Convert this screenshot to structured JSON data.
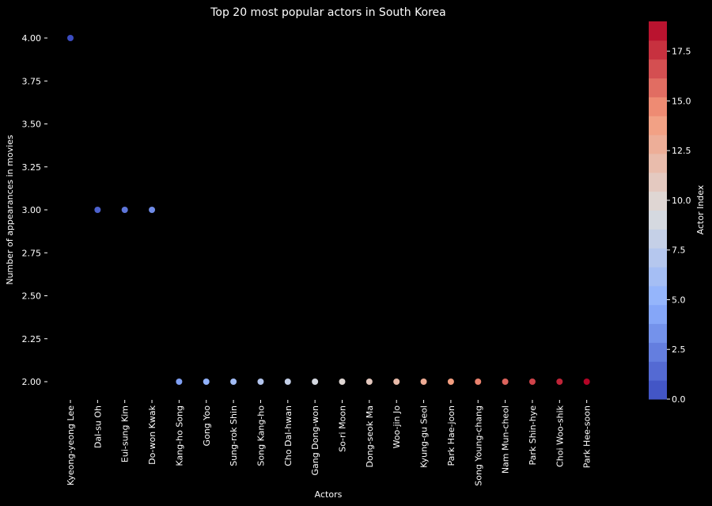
{
  "chart_data": {
    "type": "scatter",
    "title": "Top 20 most popular actors in South Korea",
    "xlabel": "Actors",
    "ylabel": "Number of appearances in movies",
    "categories": [
      "Kyeong-yeong Lee",
      "Dal-su Oh",
      "Eui-sung Kim",
      "Do-won Kwak",
      "Kang-ho Song",
      "Gong Yoo",
      "Sung-rok Shin",
      "Song Kang-ho",
      "Cho Dal-hwan",
      "Gang Dong-won",
      "So-ri Moon",
      "Dong-seok Ma",
      "Woo-jin Jo",
      "Kyung-gu Seol",
      "Park Hae-joon",
      "Song Young-chang",
      "Nam Mun-cheol",
      "Park Shin-hye",
      "Choi Woo-shik",
      "Park Hee-soon"
    ],
    "values": [
      4,
      3,
      3,
      3,
      2,
      2,
      2,
      2,
      2,
      2,
      2,
      2,
      2,
      2,
      2,
      2,
      2,
      2,
      2,
      2
    ],
    "ylim": [
      1.9,
      4.1
    ],
    "yticks": [
      "2.00",
      "2.25",
      "2.50",
      "2.75",
      "3.00",
      "3.25",
      "3.50",
      "3.75",
      "4.00"
    ],
    "colorbar": {
      "label": "Actor Index",
      "range": [
        0,
        19
      ],
      "ticks": [
        "0.0",
        "2.5",
        "5.0",
        "7.5",
        "10.0",
        "12.5",
        "15.0",
        "17.5"
      ],
      "colormap": "coolwarm",
      "levels": 20
    },
    "grid": false,
    "background": "#000000",
    "text_color": "#ffffff"
  }
}
